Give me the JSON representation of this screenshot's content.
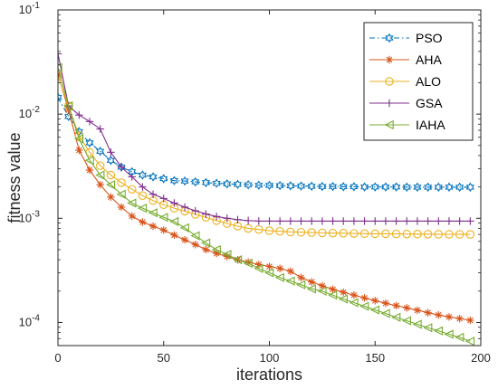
{
  "chart_data": {
    "type": "line",
    "xlabel": "iterations",
    "ylabel": "fitness value",
    "x_range": [
      0,
      200
    ],
    "y_range": [
      6e-05,
      0.1
    ],
    "y_scale": "log",
    "grid": false,
    "legend_placement": "top-right",
    "x_ticks": [
      {
        "value": 0,
        "label": "0"
      },
      {
        "value": 50,
        "label": "50"
      },
      {
        "value": 100,
        "label": "100"
      },
      {
        "value": 150,
        "label": "150"
      },
      {
        "value": 200,
        "label": "200"
      }
    ],
    "y_ticks": [
      {
        "value": 0.0001,
        "base": "10",
        "exp": "-4"
      },
      {
        "value": 0.001,
        "base": "10",
        "exp": "-3"
      },
      {
        "value": 0.01,
        "base": "10",
        "exp": "-2"
      },
      {
        "value": 0.1,
        "base": "10",
        "exp": "-1"
      }
    ],
    "series": [
      {
        "name": "PSO",
        "color": "#0072BD",
        "marker": "hexagram",
        "line_style": "dash-dot",
        "x": [
          0,
          5,
          10,
          15,
          20,
          25,
          30,
          35,
          40,
          45,
          50,
          55,
          60,
          65,
          70,
          75,
          80,
          85,
          90,
          95,
          100,
          105,
          110,
          115,
          120,
          125,
          130,
          135,
          140,
          145,
          150,
          155,
          160,
          165,
          170,
          175,
          180,
          185,
          190,
          195
        ],
        "y": [
          0.0145,
          0.0095,
          0.0068,
          0.0053,
          0.0044,
          0.0036,
          0.0031,
          0.0028,
          0.0026,
          0.0025,
          0.0024,
          0.0023,
          0.00228,
          0.00224,
          0.0022,
          0.00217,
          0.00214,
          0.00212,
          0.0021,
          0.00208,
          0.00207,
          0.00206,
          0.00205,
          0.00204,
          0.00203,
          0.00202,
          0.00202,
          0.00201,
          0.00201,
          0.002,
          0.002,
          0.002,
          0.002,
          0.00199,
          0.00199,
          0.00199,
          0.00199,
          0.00199,
          0.00199,
          0.00199
        ]
      },
      {
        "name": "AHA",
        "color": "#D95319",
        "marker": "asterisk",
        "line_style": "solid",
        "x": [
          0,
          5,
          10,
          15,
          20,
          25,
          30,
          35,
          40,
          45,
          50,
          55,
          60,
          65,
          70,
          75,
          80,
          85,
          90,
          95,
          100,
          105,
          110,
          115,
          120,
          125,
          130,
          135,
          140,
          145,
          150,
          155,
          160,
          165,
          170,
          175,
          180,
          185,
          190,
          195
        ],
        "y": [
          0.024,
          0.011,
          0.0045,
          0.0029,
          0.0021,
          0.0016,
          0.00128,
          0.00105,
          0.00092,
          0.00084,
          0.00077,
          0.00069,
          0.00062,
          0.00056,
          0.0005,
          0.00046,
          0.00043,
          0.0004,
          0.00038,
          0.00036,
          0.000345,
          0.00033,
          0.00031,
          0.00027,
          0.000245,
          0.000225,
          0.000208,
          0.000195,
          0.000183,
          0.000172,
          0.000162,
          0.000153,
          0.000145,
          0.000138,
          0.000131,
          0.000124,
          0.000118,
          0.000113,
          0.000109,
          0.000105
        ]
      },
      {
        "name": "ALO",
        "color": "#EDB120",
        "marker": "circle",
        "line_style": "solid",
        "x": [
          0,
          5,
          10,
          15,
          20,
          25,
          30,
          35,
          40,
          45,
          50,
          55,
          60,
          65,
          70,
          75,
          80,
          85,
          90,
          95,
          100,
          105,
          110,
          115,
          120,
          125,
          130,
          135,
          140,
          145,
          150,
          155,
          160,
          165,
          170,
          175,
          180,
          185,
          190,
          195
        ],
        "y": [
          0.023,
          0.012,
          0.0062,
          0.0043,
          0.0032,
          0.0026,
          0.0022,
          0.0019,
          0.00165,
          0.00148,
          0.00135,
          0.00125,
          0.00117,
          0.00109,
          0.00102,
          0.00095,
          0.00089,
          0.00084,
          0.0008,
          0.00078,
          0.00076,
          0.00075,
          0.00074,
          0.000735,
          0.00073,
          0.000725,
          0.00072,
          0.00072,
          0.000715,
          0.000712,
          0.00071,
          0.00071,
          0.000708,
          0.000706,
          0.000705,
          0.000704,
          0.000703,
          0.000702,
          0.000701,
          0.0007
        ]
      },
      {
        "name": "GSA",
        "color": "#7E2F8E",
        "marker": "plus",
        "line_style": "solid",
        "x": [
          0,
          5,
          10,
          15,
          20,
          25,
          30,
          35,
          40,
          45,
          50,
          55,
          60,
          65,
          70,
          75,
          80,
          85,
          90,
          95,
          100,
          105,
          110,
          115,
          120,
          125,
          130,
          135,
          140,
          145,
          150,
          155,
          160,
          165,
          170,
          175,
          180,
          185,
          190,
          195
        ],
        "y": [
          0.038,
          0.012,
          0.0098,
          0.0085,
          0.0072,
          0.0043,
          0.0031,
          0.0025,
          0.002,
          0.0017,
          0.00155,
          0.0014,
          0.00128,
          0.00118,
          0.0011,
          0.00104,
          0.001,
          0.00097,
          0.00095,
          0.00094,
          0.00094,
          0.00094,
          0.00094,
          0.00094,
          0.00094,
          0.00094,
          0.00094,
          0.00094,
          0.00094,
          0.00094,
          0.00094,
          0.00094,
          0.00094,
          0.00094,
          0.00094,
          0.00094,
          0.00094,
          0.00094,
          0.00094,
          0.00094
        ]
      },
      {
        "name": "IAHA",
        "color": "#77AC30",
        "marker": "triangle-left",
        "line_style": "solid",
        "x": [
          0,
          5,
          10,
          15,
          20,
          25,
          30,
          35,
          40,
          45,
          50,
          55,
          60,
          65,
          70,
          75,
          80,
          85,
          90,
          95,
          100,
          105,
          110,
          115,
          120,
          125,
          130,
          135,
          140,
          145,
          150,
          155,
          160,
          165,
          170,
          175,
          180,
          185,
          190,
          195
        ],
        "y": [
          0.028,
          0.012,
          0.0058,
          0.0036,
          0.0026,
          0.0021,
          0.0017,
          0.0014,
          0.00125,
          0.00113,
          0.00102,
          0.00093,
          0.00081,
          0.00068,
          0.00058,
          0.0005,
          0.00045,
          0.0004,
          0.00037,
          0.00033,
          0.0003,
          0.00027,
          0.00025,
          0.00023,
          0.00021,
          0.0002,
          0.000183,
          0.000168,
          0.000155,
          0.000143,
          0.000132,
          0.000122,
          0.000112,
          0.000104,
          9.6e-05,
          8.9e-05,
          8.3e-05,
          7.7e-05,
          7.2e-05,
          6.6e-05
        ]
      }
    ]
  }
}
